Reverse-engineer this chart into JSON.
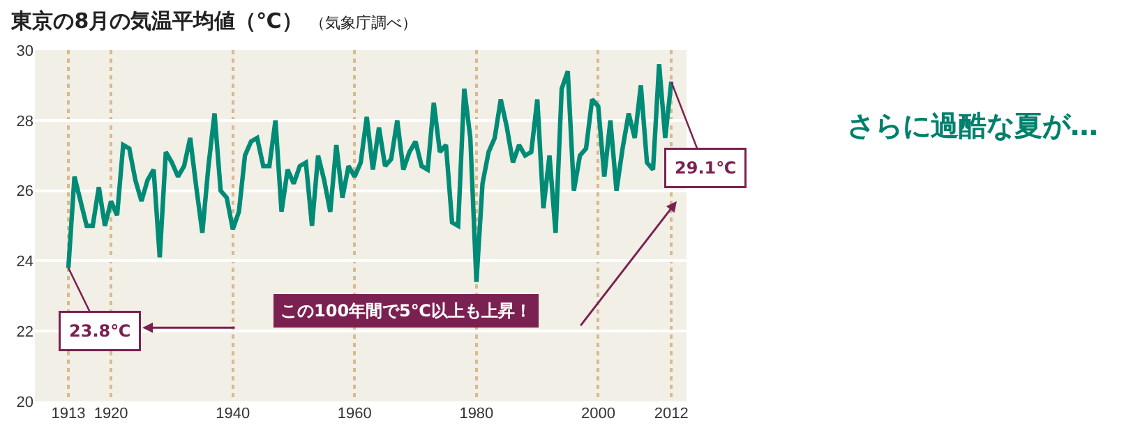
{
  "chart_data": {
    "type": "line",
    "title": "東京の8月の気温平均値（℃）",
    "subtitle": "（気象庁調べ）",
    "x": [
      1913,
      1914,
      1915,
      1916,
      1917,
      1918,
      1919,
      1920,
      1921,
      1922,
      1923,
      1924,
      1925,
      1926,
      1927,
      1928,
      1929,
      1930,
      1931,
      1932,
      1933,
      1934,
      1935,
      1936,
      1937,
      1938,
      1939,
      1940,
      1941,
      1942,
      1943,
      1944,
      1945,
      1946,
      1947,
      1948,
      1949,
      1950,
      1951,
      1952,
      1953,
      1954,
      1955,
      1956,
      1957,
      1958,
      1959,
      1960,
      1961,
      1962,
      1963,
      1964,
      1965,
      1966,
      1967,
      1968,
      1969,
      1970,
      1971,
      1972,
      1973,
      1974,
      1975,
      1976,
      1977,
      1978,
      1979,
      1980,
      1981,
      1982,
      1983,
      1984,
      1985,
      1986,
      1987,
      1988,
      1989,
      1990,
      1991,
      1992,
      1993,
      1994,
      1995,
      1996,
      1997,
      1998,
      1999,
      2000,
      2001,
      2002,
      2003,
      2004,
      2005,
      2006,
      2007,
      2008,
      2009,
      2010,
      2011,
      2012
    ],
    "series": [
      {
        "color": "#008b76",
        "values": [
          23.8,
          26.4,
          25.7,
          25.0,
          25.0,
          26.1,
          25.0,
          25.7,
          25.3,
          27.3,
          27.2,
          26.3,
          25.7,
          26.3,
          26.6,
          24.1,
          27.1,
          26.8,
          26.4,
          26.7,
          27.5,
          26.1,
          24.8,
          26.7,
          28.2,
          26.0,
          25.8,
          24.9,
          25.4,
          27.0,
          27.4,
          27.5,
          26.7,
          26.7,
          28.0,
          25.4,
          26.6,
          26.2,
          26.7,
          26.8,
          25.0,
          27.0,
          26.3,
          25.4,
          27.3,
          25.8,
          26.7,
          26.4,
          26.8,
          28.1,
          26.6,
          27.8,
          26.7,
          26.9,
          28.0,
          26.6,
          27.1,
          27.4,
          26.7,
          26.6,
          28.5,
          27.1,
          27.3,
          25.1,
          25.0,
          28.9,
          27.5,
          23.4,
          26.2,
          27.1,
          27.5,
          28.6,
          27.8,
          26.8,
          27.3,
          27.0,
          27.1,
          28.6,
          25.5,
          27.0,
          24.8,
          28.9,
          29.4,
          26.0,
          27.0,
          27.2,
          28.6,
          28.4,
          26.4,
          28.0,
          26.0,
          27.2,
          28.2,
          27.5,
          29.0,
          26.8,
          26.6,
          29.6,
          27.5,
          29.1
        ]
      }
    ],
    "xlim": [
      1907.5,
      2014.5
    ],
    "xticks": [
      1913,
      1920,
      1940,
      1960,
      1980,
      2000,
      2012
    ],
    "ylim": [
      20,
      30
    ],
    "yticks": [
      20,
      22,
      24,
      26,
      28,
      30
    ],
    "grid": true,
    "marker": "none",
    "line_style": "solid",
    "annotations": [
      {
        "text": "23.8℃",
        "x": 1913,
        "y": 23.8
      },
      {
        "text": "29.1℃",
        "x": 2012,
        "y": 29.1
      },
      "この100年間で5℃以上も上昇！",
      "さらに過酷な夏が…"
    ]
  }
}
